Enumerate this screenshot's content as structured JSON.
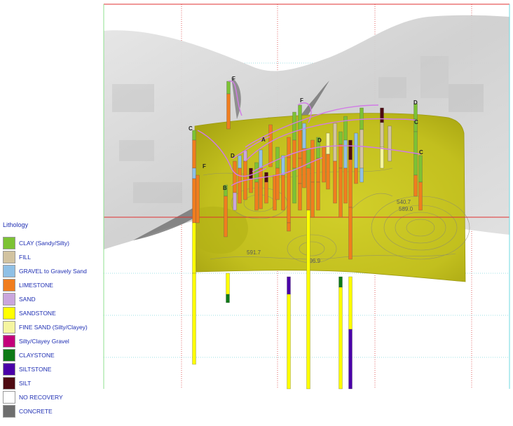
{
  "legend": {
    "title": "Lithology",
    "items": [
      {
        "label": "CLAY (Sandy/Silty)",
        "color": "#7cc234"
      },
      {
        "label": "FILL",
        "color": "#d2c3a0"
      },
      {
        "label": "GRAVEL to Gravely Sand",
        "color": "#8fc0e6"
      },
      {
        "label": "LIMESTONE",
        "color": "#f07d1e"
      },
      {
        "label": "SAND",
        "color": "#c9a6dd"
      },
      {
        "label": "SANDSTONE",
        "color": "#ffff00"
      },
      {
        "label": "FINE SAND (Silty/Clayey)",
        "color": "#f5f5a0"
      },
      {
        "label": "Silty/Clayey Gravel",
        "color": "#c3007a"
      },
      {
        "label": "CLAYSTONE",
        "color": "#0e7a16"
      },
      {
        "label": "SILTSTONE",
        "color": "#4a00a8"
      },
      {
        "label": "SILT",
        "color": "#4e0b12"
      },
      {
        "label": "NO RECOVERY",
        "color": "#ffffff"
      },
      {
        "label": "CONCRETE",
        "color": "#6e6e6e"
      }
    ]
  },
  "contours": [
    "589.0",
    "540.7",
    "596.9",
    "591.7"
  ],
  "well_labels": [
    "F",
    "F",
    "D",
    "C",
    "F",
    "C",
    "D",
    "B",
    "A",
    "C",
    "D"
  ],
  "colors": {
    "surface_fill": "#c7c41f",
    "surface_dark": "#9d9a10",
    "terrain": "#d5d5d5",
    "box_red": "#e03030",
    "box_cyan": "#6ed8e0",
    "box_green": "#8fe08f",
    "grid_red": "#e06060",
    "grid_cyan": "#9ee0e6",
    "trace": "#d17be6"
  }
}
